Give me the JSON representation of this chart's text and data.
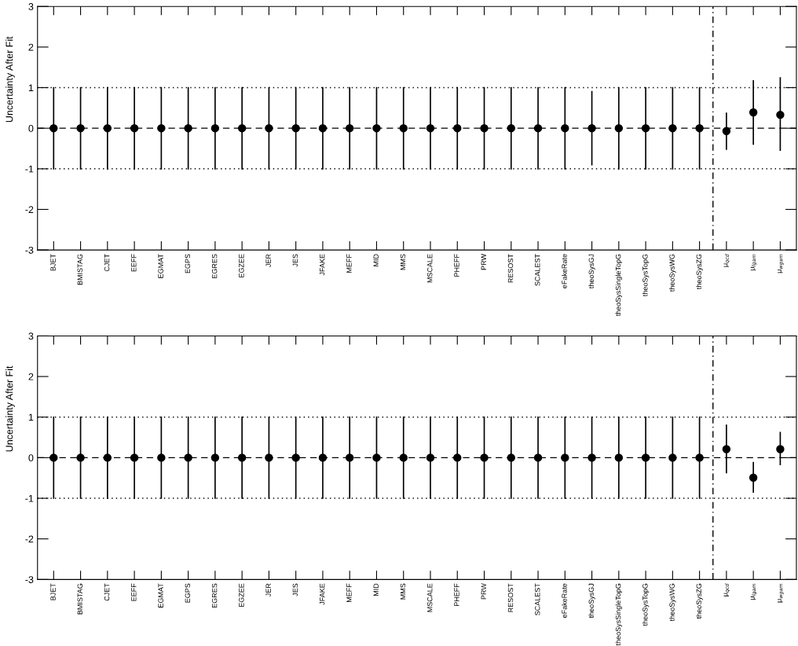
{
  "chart_data": [
    {
      "type": "scatter",
      "ylabel": "Uncertainty After Fit",
      "categories": [
        "BJET",
        "BMISTAG",
        "CJET",
        "EEFF",
        "EGMAT",
        "EGPS",
        "EGRES",
        "EGZEE",
        "JER",
        "JES",
        "JFAKE",
        "MEFF",
        "MID",
        "MMS",
        "MSCALE",
        "PHEFF",
        "PRW",
        "RESOST",
        "SCALEST",
        "eFakeRate",
        "theoSysGJ",
        "theoSysSingleTopG",
        "theoSysTopG",
        "theoSysWG",
        "theoSysZG",
        "μ$_{qcd}$",
        "μ$_{lgam}$",
        "μ$_{wgam}$"
      ],
      "series": [
        {
          "color": "#000000",
          "values": [
            0,
            0,
            0,
            0,
            0,
            0,
            0,
            0,
            0,
            0,
            0,
            0,
            0,
            0,
            0,
            0,
            0,
            0,
            0,
            0,
            0,
            0,
            0,
            0,
            0,
            -0.07,
            0.39,
            0.33
          ],
          "errors": [
            1,
            1,
            1,
            1,
            1,
            1,
            1,
            1,
            1,
            1,
            1,
            1,
            1,
            1,
            1,
            1,
            1,
            1,
            1,
            1,
            0.9,
            1,
            1,
            1,
            1,
            [
              -0.52,
              0.37
            ],
            [
              -0.39,
              1.17
            ],
            [
              -0.54,
              1.24
            ]
          ]
        }
      ],
      "marker": "circle",
      "ylim": [
        -3,
        3
      ],
      "yticks": [
        -3,
        -2,
        -1,
        0,
        1,
        2,
        3
      ],
      "grid": false,
      "ref_lines": [
        {
          "axis": "y",
          "value": 0,
          "line_style": "dashed"
        },
        {
          "axis": "y",
          "value": 1,
          "line_style": "dotted"
        },
        {
          "axis": "y",
          "value": -1,
          "line_style": "dotted"
        }
      ]
    },
    {
      "type": "scatter",
      "ylabel": "Uncertainty After Fit",
      "categories": [
        "BJET",
        "BMISTAG",
        "CJET",
        "EEFF",
        "EGMAT",
        "EGPS",
        "EGRES",
        "EGZEE",
        "JER",
        "JES",
        "JFAKE",
        "MEFF",
        "MID",
        "MMS",
        "MSCALE",
        "PHEFF",
        "PRW",
        "RESOST",
        "SCALEST",
        "eFakeRate",
        "theoSysGJ",
        "theoSysSingleTopG",
        "theoSysTopG",
        "theoSysWG",
        "theoSysZG",
        "μ$_{qcd}$",
        "μ$_{lgam}$",
        "μ$_{wgam}$"
      ],
      "series": [
        {
          "color": "#000000",
          "values": [
            0,
            0,
            0,
            0,
            0,
            0,
            0,
            0,
            0,
            0,
            0,
            0,
            0,
            0,
            0,
            0,
            0,
            0,
            0,
            0,
            0,
            0,
            0,
            0,
            0,
            0.21,
            -0.49,
            0.21
          ],
          "errors": [
            1,
            1,
            1,
            1,
            1,
            1,
            1,
            1,
            1,
            1,
            1,
            1,
            1,
            1,
            1,
            1,
            1,
            1,
            1,
            1,
            1,
            1,
            1,
            1,
            1,
            [
              -0.37,
              0.8
            ],
            [
              -0.85,
              -0.12
            ],
            [
              -0.17,
              0.62
            ]
          ]
        }
      ],
      "marker": "circle",
      "ylim": [
        -3,
        3
      ],
      "yticks": [
        -3,
        -2,
        -1,
        0,
        1,
        2,
        3
      ],
      "grid": false,
      "ref_lines": [
        {
          "axis": "y",
          "value": 0,
          "line_style": "dashed"
        },
        {
          "axis": "y",
          "value": 1,
          "line_style": "dotted"
        },
        {
          "axis": "y",
          "value": -1,
          "line_style": "dotted"
        }
      ]
    }
  ]
}
